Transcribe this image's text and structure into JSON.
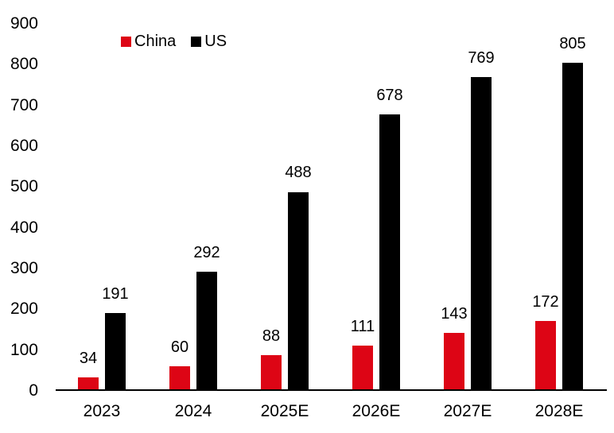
{
  "chart_data": {
    "type": "bar",
    "categories": [
      "2023",
      "2024",
      "2025E",
      "2026E",
      "2027E",
      "2028E"
    ],
    "series": [
      {
        "name": "China",
        "color": "#dd0515",
        "values": [
          34,
          60,
          88,
          111,
          143,
          172
        ]
      },
      {
        "name": "US",
        "color": "#000000",
        "values": [
          191,
          292,
          488,
          678,
          769,
          805
        ]
      }
    ],
    "ylim": [
      0,
      900
    ],
    "yticks": [
      0,
      100,
      200,
      300,
      400,
      500,
      600,
      700,
      800,
      900
    ],
    "grid": false,
    "legend_position": "top",
    "data_labels": true,
    "axis_color": "#000000",
    "text_color": "#000000",
    "background_color": "#ffffff"
  }
}
